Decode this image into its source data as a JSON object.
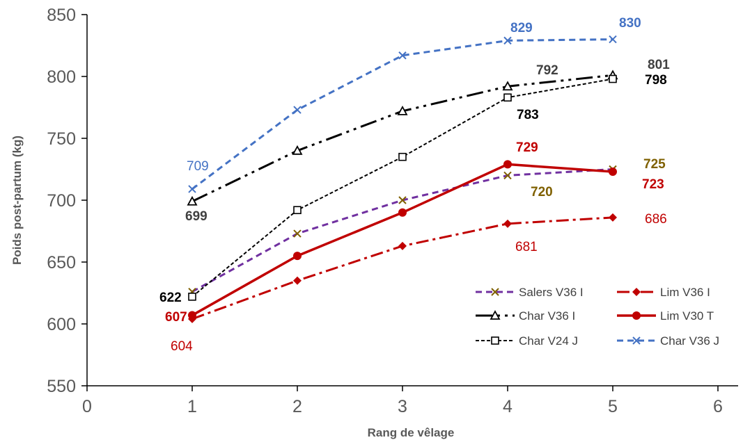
{
  "chart_data": {
    "type": "line",
    "xlabel": "Rang de vêlage",
    "ylabel": "Poids post-partum (kg)",
    "xlim": [
      0,
      6
    ],
    "ylim": [
      550,
      850
    ],
    "x_ticks": [
      "0",
      "1",
      "2",
      "3",
      "4",
      "5",
      "6"
    ],
    "y_ticks": [
      "550",
      "600",
      "650",
      "700",
      "750",
      "800",
      "850"
    ],
    "grid": false,
    "legend_position": "bottom-right",
    "x": [
      1,
      2,
      3,
      4,
      5
    ],
    "series": [
      {
        "name": "Salers V36 I",
        "values": [
          626,
          673,
          700,
          720,
          725
        ],
        "color": "#7030A0",
        "marker_color": "#7F6000",
        "marker": "x",
        "dash": "dash",
        "width": 3
      },
      {
        "name": "Lim V36 I",
        "values": [
          604,
          635,
          663,
          681,
          686
        ],
        "color": "#C00000",
        "marker_color": "#C00000",
        "marker": "diamond",
        "dash": "dashdot",
        "width": 3
      },
      {
        "name": "Char V36 I",
        "values": [
          699,
          740,
          772,
          792,
          801
        ],
        "color": "#000000",
        "marker_color": "#000000",
        "marker": "triangle",
        "dash": "longdashdotdot",
        "width": 3
      },
      {
        "name": "Lim V30 T",
        "values": [
          607,
          655,
          690,
          729,
          723
        ],
        "color": "#C00000",
        "marker_color": "#C00000",
        "marker": "circle",
        "dash": "solid",
        "width": 3.5
      },
      {
        "name": "Char V24 J",
        "values": [
          622,
          692,
          735,
          783,
          798
        ],
        "color": "#000000",
        "marker_color": "#000000",
        "marker": "square",
        "dash": "shortdash",
        "width": 2
      },
      {
        "name": "Char V36 J",
        "values": [
          709,
          773,
          817,
          829,
          830
        ],
        "color": "#4472C4",
        "marker_color": "#4472C4",
        "marker": "x",
        "dash": "dash",
        "width": 3
      }
    ],
    "data_labels": [
      {
        "text": "709",
        "color": "#4472C4",
        "bold": false
      },
      {
        "text": "829",
        "color": "#4472C4",
        "bold": true
      },
      {
        "text": "830",
        "color": "#4472C4",
        "bold": true
      },
      {
        "text": "699",
        "color": "#404040",
        "bold": true
      },
      {
        "text": "792",
        "color": "#404040",
        "bold": true
      },
      {
        "text": "801",
        "color": "#404040",
        "bold": true
      },
      {
        "text": "798",
        "color": "#000000",
        "bold": true
      },
      {
        "text": "783",
        "color": "#000000",
        "bold": true
      },
      {
        "text": "622",
        "color": "#000000",
        "bold": true
      },
      {
        "text": "729",
        "color": "#C00000",
        "bold": true
      },
      {
        "text": "725",
        "color": "#7F6000",
        "bold": true
      },
      {
        "text": "720",
        "color": "#7F6000",
        "bold": true
      },
      {
        "text": "723",
        "color": "#C00000",
        "bold": true
      },
      {
        "text": "686",
        "color": "#C00000",
        "bold": false
      },
      {
        "text": "681",
        "color": "#C00000",
        "bold": false
      },
      {
        "text": "607",
        "color": "#C00000",
        "bold": true
      },
      {
        "text": "604",
        "color": "#C00000",
        "bold": false
      }
    ]
  }
}
